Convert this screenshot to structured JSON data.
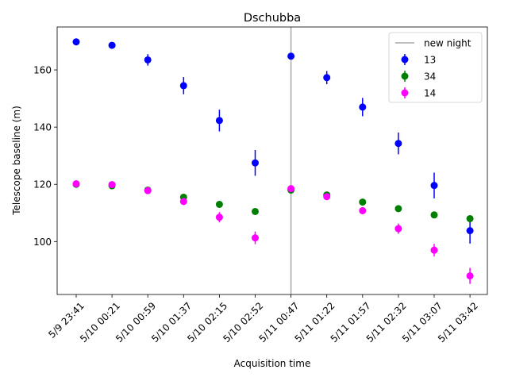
{
  "chart_data": {
    "type": "scatter",
    "title": "Dschubba",
    "xlabel": "Acquisition time",
    "ylabel": "Telescope baseline (m)",
    "categories": [
      "5/9 23:41",
      "5/10 00:21",
      "5/10 00:59",
      "5/10 01:37",
      "5/10 02:15",
      "5/10 02:52",
      "5/11 00:47",
      "5/11 01:22",
      "5/11 01:57",
      "5/11 02:32",
      "5/11 03:07",
      "5/11 03:42"
    ],
    "ylim": [
      81.5,
      175
    ],
    "yticks": [
      100,
      120,
      140,
      160
    ],
    "grid": false,
    "legend_position": "top-right",
    "vline": {
      "label": "new night",
      "x_index": 6,
      "color": "#a9a9a9"
    },
    "series": [
      {
        "name": "13",
        "color": "#0000ff",
        "values": [
          169.8,
          168.6,
          163.5,
          154.5,
          142.3,
          127.5,
          164.8,
          157.3,
          147.0,
          134.3,
          119.6,
          103.8
        ],
        "errors": [
          0.3,
          0.5,
          2.0,
          3.0,
          3.8,
          4.5,
          0.8,
          2.3,
          3.2,
          3.8,
          4.5,
          4.5
        ]
      },
      {
        "name": "34",
        "color": "#008000",
        "values": [
          120.0,
          119.5,
          118.0,
          115.5,
          113.0,
          110.5,
          118.0,
          116.3,
          113.8,
          111.5,
          109.3,
          108.0
        ],
        "errors": [
          0.2,
          0.2,
          0.3,
          0.5,
          0.6,
          0.8,
          0.3,
          0.5,
          0.6,
          0.8,
          0.9,
          1.0
        ]
      },
      {
        "name": "14",
        "color": "#ff00ff",
        "values": [
          120.2,
          119.9,
          117.8,
          114.0,
          108.5,
          101.3,
          118.5,
          115.7,
          110.8,
          104.5,
          97.0,
          88.0
        ],
        "errors": [
          0.3,
          0.4,
          0.8,
          1.2,
          1.8,
          2.2,
          0.5,
          0.8,
          1.2,
          1.8,
          2.2,
          2.8
        ]
      }
    ]
  }
}
